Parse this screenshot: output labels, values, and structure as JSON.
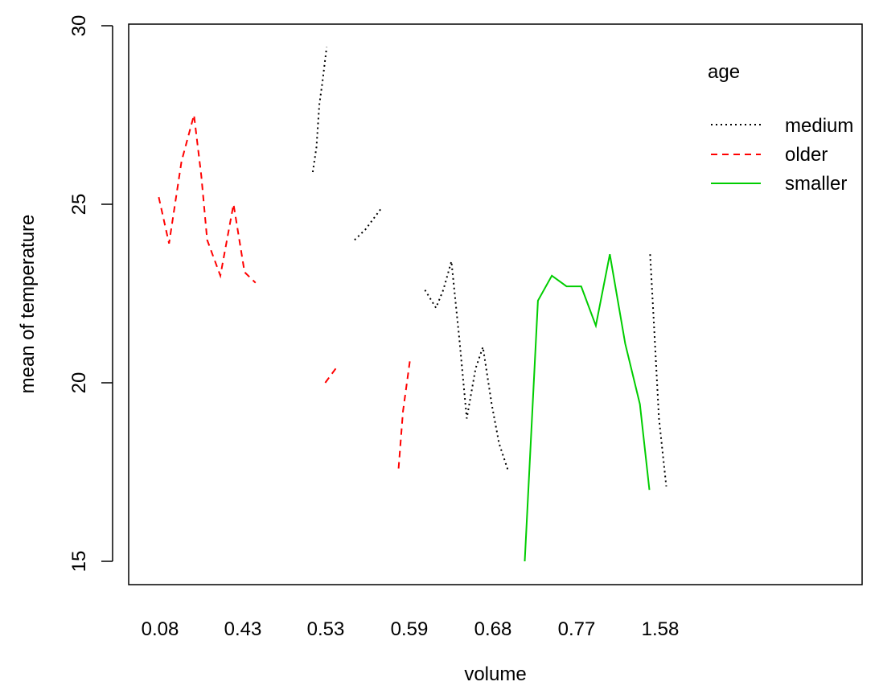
{
  "chart_data": {
    "type": "line",
    "title": "",
    "xlabel": "volume",
    "ylabel": "mean of  temperature",
    "x_tick_labels": [
      "0.08",
      "0.43",
      "0.53",
      "0.59",
      "0.68",
      "0.77",
      "1.58"
    ],
    "x_range": [
      0,
      1
    ],
    "ylim": [
      15,
      30
    ],
    "y_ticks": [
      "15",
      "20",
      "25",
      "30"
    ],
    "grid": false,
    "legend": {
      "title": "age",
      "placement": "top-right",
      "entries": [
        "medium",
        "older",
        "smaller"
      ]
    },
    "series": [
      {
        "name": "medium",
        "color": "#000000",
        "dash": "dotted",
        "segments": [
          [
            [
              0.251,
              25.9
            ],
            [
              0.256,
              26.6
            ],
            [
              0.26,
              27.8
            ],
            [
              0.264,
              28.4
            ],
            [
              0.27,
              29.4
            ]
          ],
          [
            [
              0.308,
              24.0
            ],
            [
              0.323,
              24.3
            ],
            [
              0.345,
              24.9
            ]
          ],
          [
            [
              0.404,
              22.6
            ],
            [
              0.419,
              22.1
            ],
            [
              0.429,
              22.6
            ],
            [
              0.44,
              23.4
            ],
            [
              0.451,
              21.2
            ],
            [
              0.461,
              19.0
            ],
            [
              0.473,
              20.4
            ],
            [
              0.483,
              21.0
            ],
            [
              0.495,
              19.4
            ],
            [
              0.505,
              18.3
            ],
            [
              0.518,
              17.5
            ]
          ],
          [
            [
              0.711,
              23.6
            ],
            [
              0.716,
              21.7
            ],
            [
              0.723,
              19.0
            ],
            [
              0.733,
              17.1
            ]
          ]
        ]
      },
      {
        "name": "older",
        "color": "#ff0000",
        "dash": "dashed",
        "segments": [
          [
            [
              0.041,
              25.2
            ],
            [
              0.055,
              23.9
            ],
            [
              0.072,
              26.2
            ],
            [
              0.089,
              27.5
            ],
            [
              0.099,
              25.8
            ],
            [
              0.107,
              24.0
            ],
            [
              0.125,
              23.0
            ],
            [
              0.143,
              25.0
            ],
            [
              0.158,
              23.1
            ],
            [
              0.173,
              22.8
            ]
          ],
          [
            [
              0.268,
              20.0
            ],
            [
              0.286,
              20.5
            ]
          ],
          [
            [
              0.368,
              17.6
            ],
            [
              0.374,
              19.2
            ],
            [
              0.384,
              20.7
            ]
          ]
        ]
      },
      {
        "name": "smaller",
        "color": "#00cd00",
        "dash": "solid",
        "segments": [
          [
            [
              0.54,
              15.0
            ],
            [
              0.558,
              22.3
            ],
            [
              0.577,
              23.0
            ],
            [
              0.597,
              22.7
            ],
            [
              0.617,
              22.7
            ],
            [
              0.637,
              21.6
            ],
            [
              0.656,
              23.6
            ],
            [
              0.677,
              21.1
            ],
            [
              0.697,
              19.4
            ],
            [
              0.71,
              17.0
            ]
          ]
        ]
      }
    ]
  }
}
